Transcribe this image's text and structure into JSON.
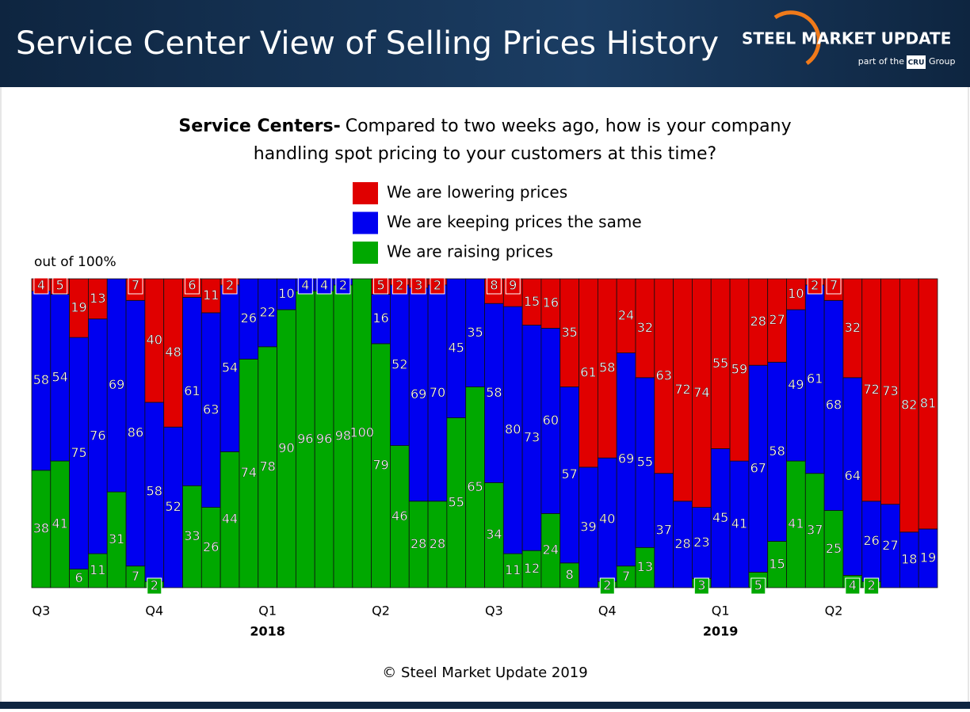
{
  "header": {
    "title": "Service Center View of Selling Prices History",
    "logo": "STEEL MARKET UPDATE",
    "logo_sub": "part of the",
    "logo_cru": "CRU",
    "logo_group": "Group"
  },
  "chart_data": {
    "type": "stacked_bar",
    "title_prefix": "Service Centers-",
    "title": [
      "Compared to two weeks ago, how is your company",
      "handling spot pricing to your customers at this time?"
    ],
    "annotation": "out of 100%",
    "categories": [
      "Q3",
      null,
      null,
      null,
      null,
      null,
      "Q4",
      null,
      null,
      null,
      null,
      null,
      "Q1",
      null,
      null,
      null,
      null,
      null,
      "Q2",
      null,
      null,
      null,
      null,
      null,
      "Q3",
      null,
      null,
      null,
      null,
      null,
      "Q4",
      null,
      null,
      null,
      null,
      null,
      "Q1",
      null,
      null,
      null,
      null,
      null,
      "Q2",
      null,
      null,
      null,
      null,
      null
    ],
    "categories_2": [
      null,
      null,
      null,
      null,
      null,
      null,
      null,
      null,
      null,
      null,
      null,
      null,
      "2018",
      null,
      null,
      null,
      null,
      null,
      null,
      null,
      null,
      null,
      null,
      null,
      null,
      null,
      null,
      null,
      null,
      null,
      null,
      null,
      null,
      null,
      null,
      null,
      "2019",
      null,
      null,
      null,
      null,
      null,
      null,
      null,
      null,
      null,
      null,
      null
    ],
    "ylim": [
      0,
      100
    ],
    "series": [
      {
        "name": "We are raising prices",
        "color": "#00a800",
        "values": [
          38,
          41,
          6,
          11,
          31,
          7,
          2,
          0,
          33,
          26,
          44,
          74,
          78,
          90,
          96,
          96,
          98,
          100,
          79,
          46,
          28,
          28,
          55,
          65,
          34,
          11,
          12,
          24,
          8,
          0,
          2,
          7,
          13,
          0,
          0,
          3,
          0,
          0,
          5,
          15,
          41,
          37,
          25,
          4,
          2,
          0,
          0,
          0
        ]
      },
      {
        "name": "We are keeping prices the same",
        "color": "#0000f0",
        "values": [
          58,
          54,
          75,
          76,
          69,
          86,
          58,
          52,
          61,
          63,
          54,
          26,
          22,
          10,
          4,
          4,
          2,
          0,
          16,
          52,
          69,
          70,
          45,
          35,
          58,
          80,
          73,
          60,
          57,
          39,
          40,
          69,
          55,
          37,
          28,
          23,
          45,
          41,
          67,
          58,
          49,
          61,
          68,
          64,
          26,
          27,
          18,
          19
        ]
      },
      {
        "name": "We are lowering prices",
        "color": "#e00000",
        "values": [
          4,
          5,
          19,
          13,
          0,
          7,
          40,
          48,
          6,
          11,
          2,
          0,
          0,
          0,
          0,
          0,
          0,
          0,
          5,
          2,
          3,
          2,
          0,
          0,
          8,
          9,
          15,
          16,
          35,
          61,
          58,
          24,
          32,
          63,
          72,
          74,
          55,
          59,
          28,
          27,
          10,
          2,
          7,
          32,
          72,
          73,
          82,
          81
        ]
      }
    ]
  },
  "footer": "© Steel Market Update 2019"
}
